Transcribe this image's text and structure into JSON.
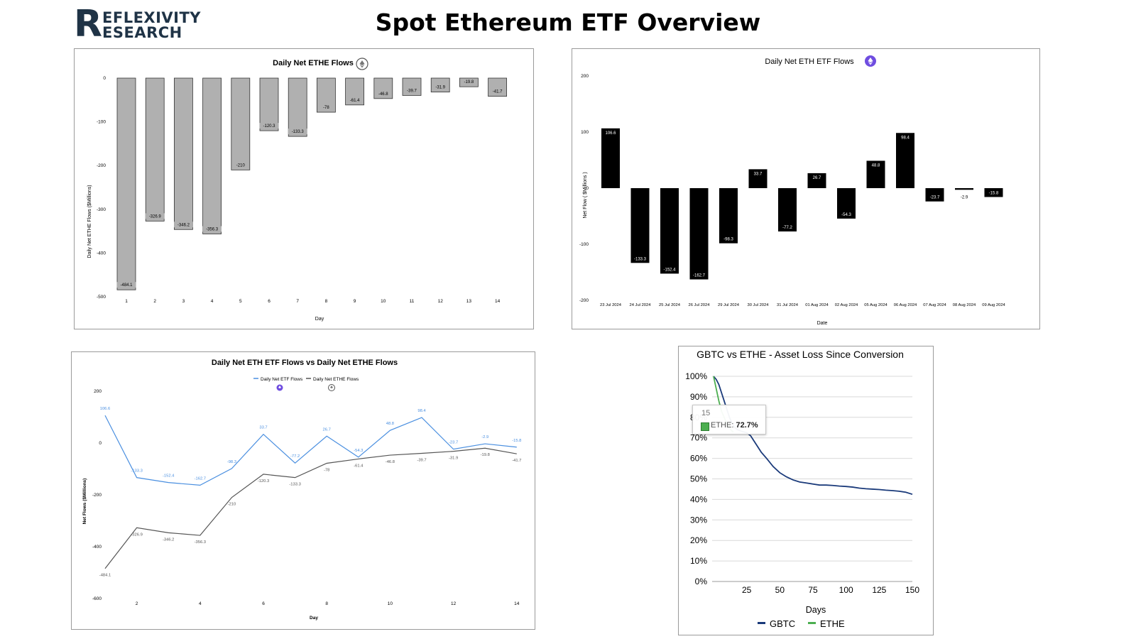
{
  "header": {
    "logo_mark": "R",
    "logo_line1": "EFLEXIVITY",
    "logo_line2": "ESEARCH",
    "title": "Spot Ethereum ETF Overview"
  },
  "colors": {
    "ethe_bar": "#b0b0b0",
    "eth_etf_bar": "#000000",
    "eth_etf_line": "#4a8fe0",
    "ethe_line": "#555555",
    "gbtc_line": "#1a3a7a",
    "ethe_loss_line": "#4caf50"
  },
  "chart_data": [
    {
      "type": "bar",
      "title": "Daily Net ETHE Flows",
      "title_icon": "ethereum-grey-coin-icon",
      "xlabel": "Day",
      "ylabel": "Daily Net ETHE Flows ($Millions)",
      "categories": [
        "1",
        "2",
        "3",
        "4",
        "5",
        "6",
        "7",
        "8",
        "9",
        "10",
        "11",
        "12",
        "13",
        "14"
      ],
      "values": [
        -484.1,
        -326.9,
        -346.2,
        -356.3,
        -210,
        -120.3,
        -133.3,
        -78,
        -61.4,
        -46.8,
        -39.7,
        -31.9,
        -19.8,
        -41.7
      ],
      "data_labels": [
        "-484.1",
        "-326.9",
        "-346.2",
        "-356.3",
        "-210",
        "-120.3",
        "-133.3",
        "-78",
        "-61.4",
        "-46.8",
        "-39.7",
        "-31.9",
        "-19.8",
        "-41.7"
      ],
      "ylim": [
        -500,
        0
      ],
      "yticks": [
        0,
        -100,
        -200,
        -300,
        -400,
        -500
      ],
      "ytick_labels": [
        "0",
        "-100",
        "-200",
        "-300",
        "-400",
        "-500"
      ],
      "grid": false
    },
    {
      "type": "bar",
      "title": "Daily Net ETH ETF Flows",
      "title_icon": "ethereum-purple-coin-icon",
      "xlabel": "Date",
      "ylabel": "Net Flow ( $Millions )",
      "categories": [
        "23 Jul 2024",
        "24 Jul 2024",
        "25 Jul 2024",
        "26 Jul 2024",
        "29 Jul 2024",
        "30 Jul 2024",
        "31 Jul 2024",
        "01 Aug 2024",
        "02 Aug 2024",
        "05 Aug 2024",
        "06 Aug 2024",
        "07 Aug 2024",
        "08 Aug 2024",
        "09 Aug 2024"
      ],
      "values": [
        106.6,
        -133.3,
        -152.4,
        -162.7,
        -98.3,
        33.7,
        -77.2,
        26.7,
        -54.3,
        48.8,
        98.4,
        -23.7,
        -2.9,
        -15.8
      ],
      "data_labels": [
        "106.6",
        "-133.3",
        "-152.4",
        "-162.7",
        "-98.3",
        "33.7",
        "-77.2",
        "26.7",
        "-54.3",
        "48.8",
        "98.4",
        "-23.7",
        "-2.9",
        "-15.8"
      ],
      "ylim": [
        -200,
        200
      ],
      "yticks": [
        200,
        100,
        0,
        -100,
        -200
      ],
      "ytick_labels": [
        "200",
        "100",
        "0",
        "-100",
        "-200"
      ],
      "grid": false
    },
    {
      "type": "line",
      "title": "Daily Net ETH ETF Flows vs Daily Net ETHE Flows",
      "xlabel": "Day",
      "ylabel": "Net Flows ($Millions)",
      "legend_placement": "top-center",
      "x": [
        1,
        2,
        3,
        4,
        5,
        6,
        7,
        8,
        9,
        10,
        11,
        12,
        13,
        14
      ],
      "xticks": [
        2,
        4,
        6,
        8,
        10,
        12,
        14
      ],
      "xtick_labels": [
        "2",
        "4",
        "6",
        "8",
        "10",
        "12",
        "14"
      ],
      "ylim": [
        -600,
        200
      ],
      "yticks": [
        200,
        0,
        -200,
        -400,
        -600
      ],
      "ytick_labels": [
        "200",
        "0",
        "-200",
        "-400",
        "-600"
      ],
      "series": [
        {
          "name": "Daily Net ETF Flows",
          "icon": "ethereum-purple-coin-icon",
          "values": [
            106.6,
            -133.3,
            -152.4,
            -162.7,
            -98.3,
            33.7,
            -77.2,
            26.7,
            -54.3,
            48.8,
            98.4,
            -23.7,
            -2.9,
            -15.8
          ],
          "data_labels": [
            "106.6",
            "-133.3",
            "-152.4",
            "-162.7",
            "-98.3",
            "33.7",
            "-77.2",
            "26.7",
            "-54.3",
            "48.8",
            "98.4",
            "-23.7",
            "-2.9",
            "-15.8"
          ]
        },
        {
          "name": "Daily Net ETHE Flows",
          "icon": "ethereum-grey-coin-icon",
          "values": [
            -484.1,
            -326.9,
            -346.2,
            -356.3,
            -210,
            -120.3,
            -133.3,
            -78,
            -61.4,
            -46.8,
            -39.7,
            -31.9,
            -19.8,
            -41.7
          ],
          "data_labels": [
            "-484.1",
            "-326.9",
            "-346.2",
            "-356.3",
            "-210",
            "-120.3",
            "-133.3",
            "-78",
            "-61.4",
            "-46.8",
            "-39.7",
            "-31.9",
            "-19.8",
            "-41.7"
          ]
        }
      ],
      "grid": false
    },
    {
      "type": "line",
      "title": "GBTC vs ETHE - Asset Loss Since Conversion",
      "xlabel": "Days",
      "ylabel": "",
      "legend_placement": "bottom-center",
      "xlim": [
        0,
        150
      ],
      "xticks": [
        25,
        50,
        75,
        100,
        125,
        150
      ],
      "xtick_labels": [
        "25",
        "50",
        "75",
        "100",
        "125",
        "150"
      ],
      "ylim": [
        0,
        100
      ],
      "yticks": [
        0,
        10,
        20,
        30,
        40,
        50,
        60,
        70,
        80,
        90,
        100
      ],
      "ytick_labels": [
        "0%",
        "10%",
        "20%",
        "30%",
        "40%",
        "50%",
        "60%",
        "70%",
        "80%",
        "90%",
        "100%"
      ],
      "series": [
        {
          "name": "GBTC",
          "x": [
            0,
            2,
            4,
            6,
            8,
            10,
            12,
            14,
            16,
            18,
            20,
            22,
            25,
            28,
            30,
            33,
            36,
            40,
            45,
            50,
            55,
            60,
            65,
            70,
            75,
            80,
            85,
            90,
            95,
            100,
            105,
            110,
            115,
            120,
            125,
            130,
            135,
            140,
            145,
            150
          ],
          "y": [
            100,
            98.5,
            96,
            92,
            88,
            84,
            80,
            77,
            75,
            74,
            73.5,
            73,
            72.5,
            71,
            69,
            66,
            63,
            60,
            56,
            53,
            51,
            49.5,
            48.5,
            48,
            47.5,
            47,
            47,
            46.8,
            46.5,
            46.3,
            46,
            45.5,
            45.2,
            45,
            44.8,
            44.5,
            44.3,
            44,
            43.5,
            42.5
          ]
        },
        {
          "name": "ETHE",
          "x": [
            0,
            1,
            2,
            3,
            4,
            5,
            6,
            7,
            8,
            9,
            10,
            11,
            12,
            13,
            14,
            15
          ],
          "y": [
            100,
            97,
            94,
            91,
            88,
            85.5,
            83,
            81.5,
            80,
            78.5,
            77,
            76,
            75,
            74,
            73.3,
            72.7
          ]
        }
      ],
      "tooltip": {
        "header": "15",
        "series_label": "ETHE: ",
        "value": "72.7%"
      },
      "grid": true
    }
  ]
}
